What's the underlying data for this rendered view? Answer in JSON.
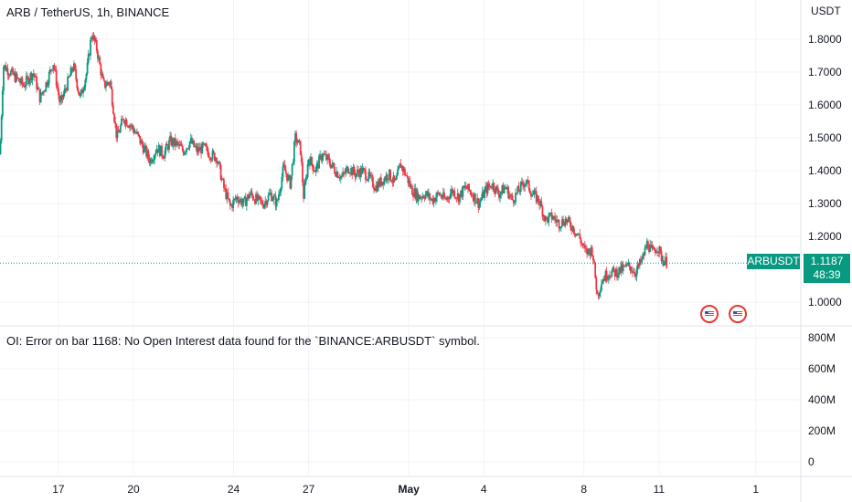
{
  "header": {
    "title": "ARB / TetherUS, 1h, BINANCE",
    "currency": "USDT"
  },
  "indicator": {
    "error_text": "OI: Error on bar 1168: No Open Interest data found for the `BINANCE:ARBUSDT` symbol."
  },
  "price_tag": {
    "symbol": "ARBUSDT",
    "price": "1.1187",
    "countdown": "48:39"
  },
  "colors": {
    "up": "#089981",
    "down": "#f23645",
    "grid": "#f0f3fa",
    "last_price_line": "#089981"
  },
  "chart_data": [
    {
      "type": "candlestick",
      "title": "ARB / TetherUS, 1h, BINANCE",
      "ylabel": "USDT",
      "ylim": [
        0.97,
        1.85
      ],
      "y_ticks": [
        "1.8000",
        "1.7000",
        "1.6000",
        "1.5000",
        "1.4000",
        "1.3000",
        "1.2000",
        "1.0000"
      ],
      "x_ticks": [
        "17",
        "20",
        "24",
        "27",
        "May",
        "4",
        "8",
        "11",
        "1"
      ],
      "last_price": 1.1187,
      "close_path": [
        {
          "x": 0,
          "y": 1.45
        },
        {
          "x": 2,
          "y": 1.72
        },
        {
          "x": 8,
          "y": 1.69
        },
        {
          "x": 14,
          "y": 1.66
        },
        {
          "x": 20,
          "y": 1.7
        },
        {
          "x": 24,
          "y": 1.62
        },
        {
          "x": 28,
          "y": 1.67
        },
        {
          "x": 32,
          "y": 1.73
        },
        {
          "x": 36,
          "y": 1.6
        },
        {
          "x": 40,
          "y": 1.66
        },
        {
          "x": 44,
          "y": 1.72
        },
        {
          "x": 48,
          "y": 1.62
        },
        {
          "x": 52,
          "y": 1.7
        },
        {
          "x": 55,
          "y": 1.82
        },
        {
          "x": 58,
          "y": 1.77
        },
        {
          "x": 62,
          "y": 1.66
        },
        {
          "x": 66,
          "y": 1.67
        },
        {
          "x": 70,
          "y": 1.5
        },
        {
          "x": 74,
          "y": 1.56
        },
        {
          "x": 78,
          "y": 1.54
        },
        {
          "x": 82,
          "y": 1.51
        },
        {
          "x": 86,
          "y": 1.47
        },
        {
          "x": 90,
          "y": 1.43
        },
        {
          "x": 94,
          "y": 1.47
        },
        {
          "x": 98,
          "y": 1.45
        },
        {
          "x": 102,
          "y": 1.49
        },
        {
          "x": 106,
          "y": 1.48
        },
        {
          "x": 110,
          "y": 1.46
        },
        {
          "x": 114,
          "y": 1.49
        },
        {
          "x": 118,
          "y": 1.46
        },
        {
          "x": 122,
          "y": 1.47
        },
        {
          "x": 126,
          "y": 1.45
        },
        {
          "x": 130,
          "y": 1.44
        },
        {
          "x": 134,
          "y": 1.35
        },
        {
          "x": 138,
          "y": 1.29
        },
        {
          "x": 142,
          "y": 1.32
        },
        {
          "x": 146,
          "y": 1.3
        },
        {
          "x": 150,
          "y": 1.33
        },
        {
          "x": 154,
          "y": 1.31
        },
        {
          "x": 158,
          "y": 1.3
        },
        {
          "x": 162,
          "y": 1.33
        },
        {
          "x": 166,
          "y": 1.3
        },
        {
          "x": 170,
          "y": 1.41
        },
        {
          "x": 174,
          "y": 1.36
        },
        {
          "x": 177,
          "y": 1.5
        },
        {
          "x": 180,
          "y": 1.47
        },
        {
          "x": 182,
          "y": 1.32
        },
        {
          "x": 185,
          "y": 1.44
        },
        {
          "x": 189,
          "y": 1.4
        },
        {
          "x": 193,
          "y": 1.45
        },
        {
          "x": 197,
          "y": 1.43
        },
        {
          "x": 201,
          "y": 1.4
        },
        {
          "x": 205,
          "y": 1.38
        },
        {
          "x": 209,
          "y": 1.41
        },
        {
          "x": 213,
          "y": 1.39
        },
        {
          "x": 217,
          "y": 1.4
        },
        {
          "x": 221,
          "y": 1.38
        },
        {
          "x": 225,
          "y": 1.35
        },
        {
          "x": 229,
          "y": 1.37
        },
        {
          "x": 233,
          "y": 1.39
        },
        {
          "x": 237,
          "y": 1.36
        },
        {
          "x": 240,
          "y": 1.42
        },
        {
          "x": 243,
          "y": 1.39
        },
        {
          "x": 247,
          "y": 1.34
        },
        {
          "x": 251,
          "y": 1.32
        },
        {
          "x": 255,
          "y": 1.33
        },
        {
          "x": 259,
          "y": 1.31
        },
        {
          "x": 263,
          "y": 1.33
        },
        {
          "x": 267,
          "y": 1.31
        },
        {
          "x": 271,
          "y": 1.34
        },
        {
          "x": 275,
          "y": 1.32
        },
        {
          "x": 279,
          "y": 1.35
        },
        {
          "x": 283,
          "y": 1.33
        },
        {
          "x": 287,
          "y": 1.3
        },
        {
          "x": 291,
          "y": 1.34
        },
        {
          "x": 295,
          "y": 1.36
        },
        {
          "x": 299,
          "y": 1.33
        },
        {
          "x": 303,
          "y": 1.35
        },
        {
          "x": 307,
          "y": 1.31
        },
        {
          "x": 311,
          "y": 1.34
        },
        {
          "x": 315,
          "y": 1.37
        },
        {
          "x": 319,
          "y": 1.33
        },
        {
          "x": 323,
          "y": 1.31
        },
        {
          "x": 327,
          "y": 1.25
        },
        {
          "x": 331,
          "y": 1.26
        },
        {
          "x": 335,
          "y": 1.24
        },
        {
          "x": 339,
          "y": 1.25
        },
        {
          "x": 343,
          "y": 1.23
        },
        {
          "x": 347,
          "y": 1.2
        },
        {
          "x": 351,
          "y": 1.15
        },
        {
          "x": 355,
          "y": 1.16
        },
        {
          "x": 358,
          "y": 1.02
        },
        {
          "x": 361,
          "y": 1.07
        },
        {
          "x": 365,
          "y": 1.09
        },
        {
          "x": 369,
          "y": 1.09
        },
        {
          "x": 373,
          "y": 1.1
        },
        {
          "x": 377,
          "y": 1.11
        },
        {
          "x": 381,
          "y": 1.09
        },
        {
          "x": 385,
          "y": 1.13
        },
        {
          "x": 388,
          "y": 1.18
        },
        {
          "x": 391,
          "y": 1.15
        },
        {
          "x": 394,
          "y": 1.17
        },
        {
          "x": 397,
          "y": 1.13
        },
        {
          "x": 400,
          "y": 1.12
        }
      ],
      "x_tick_positions": [
        {
          "label": "17",
          "x": 35
        },
        {
          "label": "20",
          "x": 80
        },
        {
          "label": "24",
          "x": 140
        },
        {
          "label": "27",
          "x": 185
        },
        {
          "label": "May",
          "x": 245
        },
        {
          "label": "4",
          "x": 290
        },
        {
          "label": "8",
          "x": 350
        },
        {
          "label": "11",
          "x": 395
        },
        {
          "label": "1",
          "x": 453
        }
      ],
      "x_range": [
        0,
        480
      ]
    },
    {
      "type": "open_interest",
      "y_ticks": [
        "800M",
        "600M",
        "400M",
        "200M",
        "0"
      ],
      "ylim": [
        0,
        800000000
      ]
    }
  ]
}
